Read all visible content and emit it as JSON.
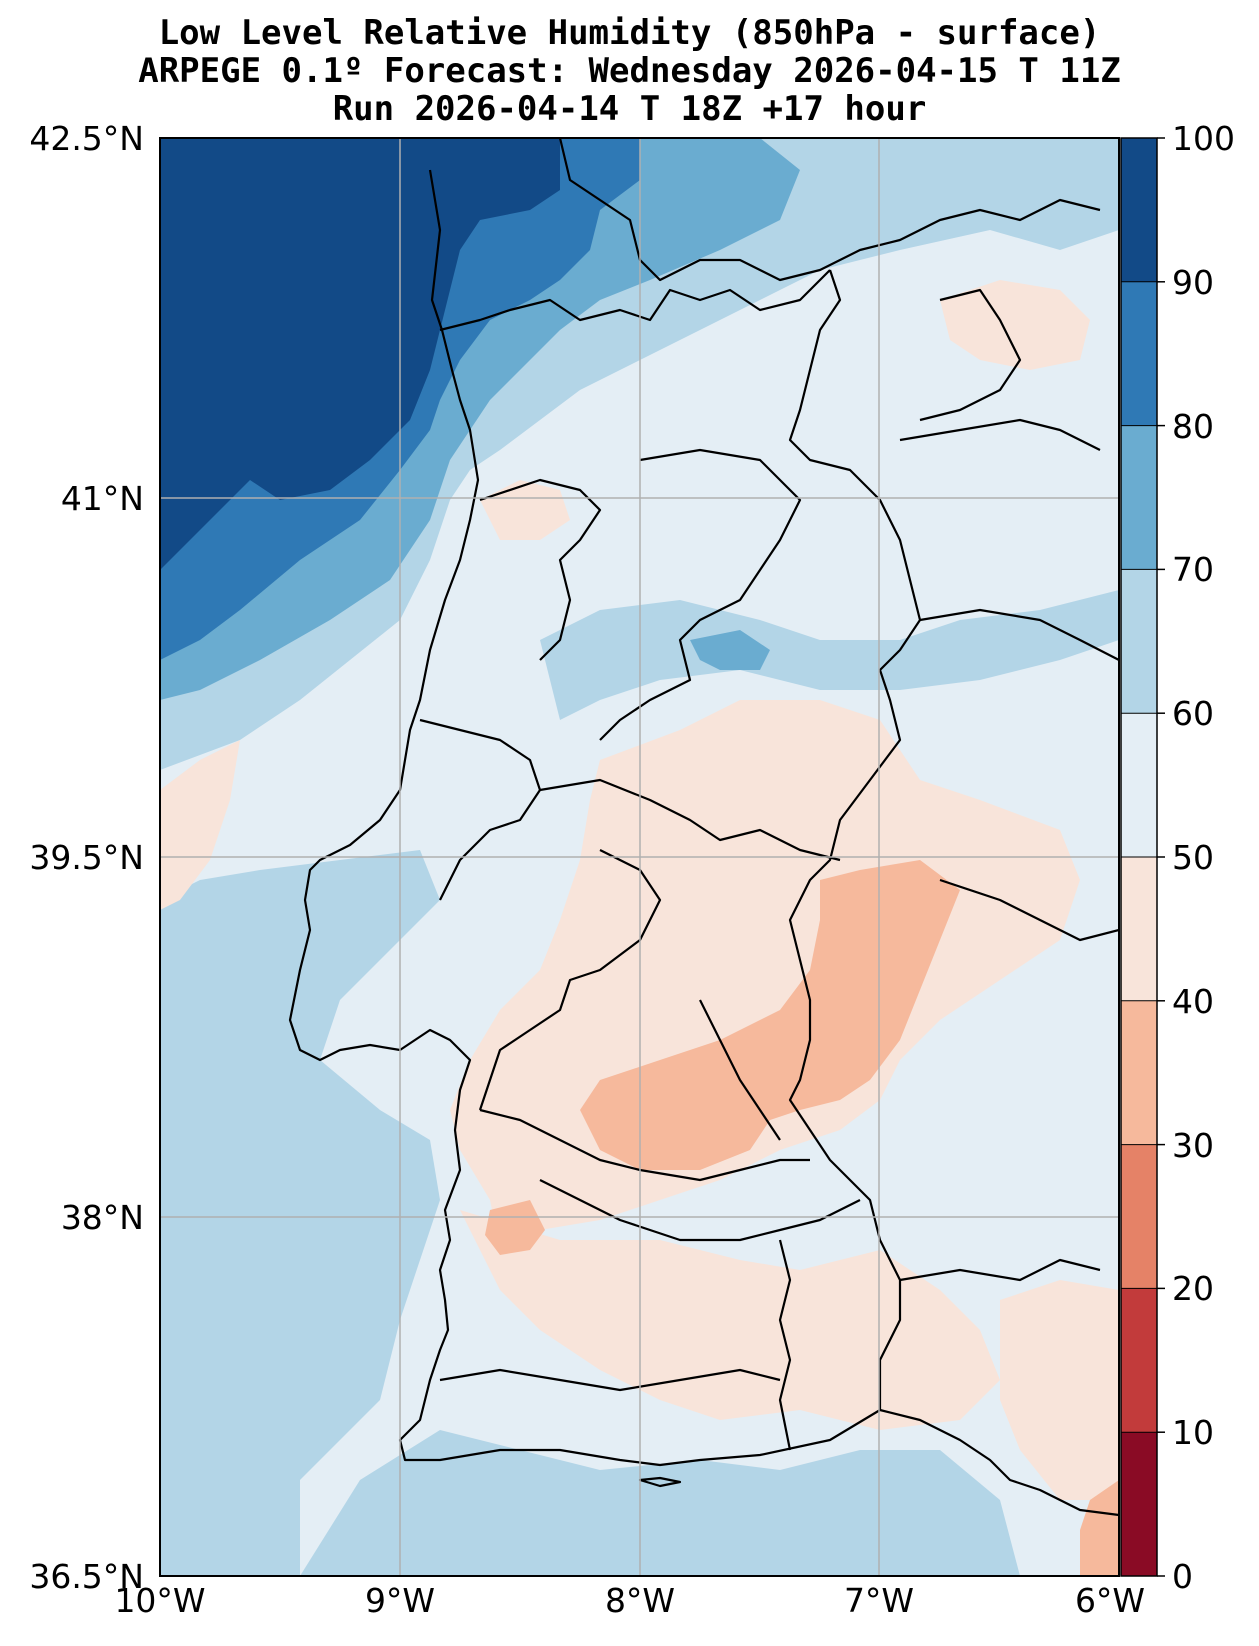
{
  "title": {
    "line1": "Low Level Relative Humidity (850hPa - surface)",
    "line2": "ARPEGE 0.1º Forecast: Wednesday 2026-04-15 T 11Z",
    "line3": "Run 2026-04-14 T 18Z +17 hour"
  },
  "axes": {
    "lat_ticks": [
      "42.5°N",
      "41°N",
      "39.5°N",
      "38°N",
      "36.5°N"
    ],
    "lon_ticks": [
      "10°W",
      "9°W",
      "8°W",
      "7°W",
      "6°W"
    ]
  },
  "colorbar": {
    "ticks": [
      "100",
      "90",
      "80",
      "70",
      "60",
      "50",
      "40",
      "30",
      "20",
      "10",
      "0"
    ],
    "colors": [
      "#124a87",
      "#2f79b5",
      "#6aacd0",
      "#b3d5e7",
      "#e4eef5",
      "#f8e4da",
      "#f6b99c",
      "#e58267",
      "#c23b3b",
      "#8a0b25"
    ]
  },
  "chart_data": {
    "type": "heatmap",
    "variable": "Low Level Relative Humidity (850hPa - surface)",
    "units": "%",
    "lon_range": [
      -10,
      -6
    ],
    "lat_range": [
      36.5,
      42.5
    ],
    "levels": [
      0,
      10,
      20,
      30,
      40,
      50,
      60,
      70,
      80,
      90,
      100
    ],
    "grid": true
  }
}
